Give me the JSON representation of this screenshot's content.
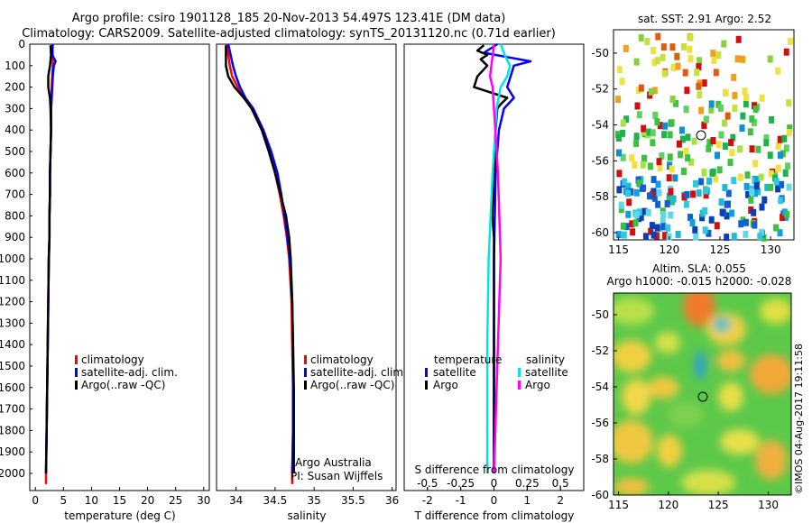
{
  "header": {
    "title_line1": "Argo profile: csiro 1901128_185 20-Nov-2013 54.497S 123.41E (DM data)",
    "title_line2": "Climatology: CARS2009. Satellite-adjusted climatology: synTS_20131120.nc (0.71d earlier)"
  },
  "depth_ticks": [
    0,
    100,
    200,
    300,
    400,
    500,
    600,
    700,
    800,
    900,
    1000,
    1100,
    1200,
    1300,
    1400,
    1500,
    1600,
    1700,
    1800,
    1900,
    2000
  ],
  "colors": {
    "climatology": "#ff0000",
    "satellite": "#0000ff",
    "argo": "#000000",
    "salinity_satellite": "#00e5e5",
    "salinity_argo": "#ff00ff"
  },
  "panel_temperature": {
    "xlabel": "temperature (deg C)",
    "xticks": [
      "0",
      "5",
      "10",
      "15",
      "20",
      "25",
      "30"
    ],
    "legend": [
      "climatology",
      "satellite-adj. clim.",
      "Argo(..raw -QC)"
    ]
  },
  "panel_salinity": {
    "xlabel": "salinity",
    "xticks": [
      "34",
      "34.5",
      "35",
      "35.5",
      "36"
    ],
    "legend": [
      "climatology",
      "satellite-adj. clim.",
      "Argo(..raw -QC)"
    ],
    "note_line1": "Argo Australia",
    "note_line2": "PI: Susan Wijffels"
  },
  "panel_difference": {
    "xlabel": "T difference from climatology",
    "xlabel_top": "S difference from climatology",
    "xticks_t": [
      "-2",
      "-1",
      "0",
      "1",
      "2"
    ],
    "xticks_s": [
      "-0.5",
      "-0.25",
      "0",
      "0.25",
      "0.5"
    ],
    "legend_temperature_title": "temperature",
    "legend_salinity_title": "salinity",
    "legend_t_items": [
      "satellite",
      "Argo"
    ],
    "legend_s_items": [
      "satellite",
      "Argo"
    ]
  },
  "map_sst": {
    "title": "sat. SST: 2.91  Argo: 2.52",
    "yticks": [
      "-50",
      "-52",
      "-54",
      "-56",
      "-58",
      "-60"
    ],
    "xticks": [
      "115",
      "120",
      "125",
      "130"
    ]
  },
  "map_sla": {
    "title_line1": "Altim. SLA: 0.055",
    "title_line2": "Argo h1000: -0.015 h2000: -0.028",
    "yticks": [
      "-50",
      "-52",
      "-54",
      "-56",
      "-58",
      "-60"
    ],
    "xticks": [
      "115",
      "120",
      "125",
      "130"
    ]
  },
  "credit": "©IMOS 04-Aug-2017 19:11:58",
  "chart_data": [
    {
      "type": "line",
      "xlabel": "temperature (deg C)",
      "ylabel": "",
      "xlim": [
        -1,
        31
      ],
      "ylim": [
        2080,
        0
      ],
      "series": [
        {
          "name": "climatology",
          "depth": [
            0,
            50,
            100,
            150,
            200,
            250,
            300,
            400,
            500,
            600,
            700,
            800,
            900,
            1000,
            1200,
            1400,
            1600,
            1800,
            2000,
            2050
          ],
          "values": [
            3.0,
            3.1,
            3.1,
            3.0,
            2.9,
            2.9,
            2.8,
            2.8,
            2.7,
            2.6,
            2.6,
            2.5,
            2.5,
            2.4,
            2.3,
            2.2,
            2.1,
            2.0,
            1.9,
            1.9
          ]
        },
        {
          "name": "satellite-adj. clim.",
          "depth": [
            0,
            50,
            80,
            100,
            150,
            200,
            250,
            300,
            400,
            500,
            600,
            700,
            800,
            900,
            1000,
            1200,
            1400,
            1600,
            1800,
            2000
          ],
          "values": [
            3.1,
            3.0,
            3.6,
            3.3,
            3.1,
            3.0,
            2.9,
            2.8,
            2.8,
            2.7,
            2.6,
            2.6,
            2.5,
            2.5,
            2.4,
            2.3,
            2.2,
            2.1,
            2.0,
            1.9
          ]
        },
        {
          "name": "Argo(..raw -QC)",
          "depth": [
            5,
            50,
            100,
            150,
            200,
            250,
            300,
            400,
            500,
            600,
            700,
            800,
            900,
            1000,
            1200,
            1400,
            1600,
            1800,
            2000
          ],
          "values": [
            2.7,
            2.8,
            2.6,
            2.3,
            2.3,
            2.6,
            2.7,
            2.8,
            2.7,
            2.6,
            2.6,
            2.5,
            2.5,
            2.4,
            2.3,
            2.2,
            2.1,
            2.0,
            1.9
          ]
        }
      ]
    },
    {
      "type": "line",
      "xlabel": "salinity",
      "ylabel": "",
      "xlim": [
        33.75,
        36.05
      ],
      "ylim": [
        2080,
        0
      ],
      "series": [
        {
          "name": "climatology",
          "depth": [
            0,
            50,
            100,
            150,
            200,
            250,
            300,
            400,
            500,
            600,
            700,
            800,
            900,
            1000,
            1200,
            1400,
            1600,
            1800,
            2000,
            2050
          ],
          "values": [
            33.88,
            33.9,
            33.92,
            33.95,
            34.02,
            34.1,
            34.2,
            34.33,
            34.42,
            34.5,
            34.56,
            34.61,
            34.65,
            34.68,
            34.71,
            34.72,
            34.73,
            34.73,
            34.72,
            34.72
          ]
        },
        {
          "name": "satellite-adj. clim.",
          "depth": [
            0,
            50,
            100,
            150,
            200,
            250,
            300,
            400,
            500,
            600,
            700,
            800,
            900,
            1000,
            1200,
            1400,
            1600,
            1800,
            2000
          ],
          "values": [
            33.9,
            33.93,
            33.96,
            34.0,
            34.05,
            34.12,
            34.22,
            34.35,
            34.45,
            34.53,
            34.58,
            34.62,
            34.66,
            34.69,
            34.72,
            34.73,
            34.73,
            34.73,
            34.72
          ]
        },
        {
          "name": "Argo(..raw -QC)",
          "depth": [
            5,
            50,
            100,
            150,
            200,
            250,
            300,
            400,
            500,
            600,
            700,
            800,
            900,
            1000,
            1200,
            1400,
            1600,
            1800,
            2000
          ],
          "values": [
            33.87,
            33.87,
            33.87,
            33.9,
            33.98,
            34.1,
            34.2,
            34.33,
            34.42,
            34.5,
            34.57,
            34.64,
            34.68,
            34.7,
            34.72,
            34.73,
            34.74,
            34.74,
            34.74
          ]
        }
      ]
    },
    {
      "type": "line",
      "xlabel": "T difference from climatology",
      "xlabel_top": "S difference from climatology",
      "xlim_t": [
        -2.7,
        2.7
      ],
      "xlim_s": [
        -0.675,
        0.675
      ],
      "ylim": [
        2080,
        0
      ],
      "series": [
        {
          "name": "satellite",
          "variable": "temperature",
          "depth": [
            0,
            40,
            60,
            80,
            100,
            150,
            200,
            250,
            300,
            400,
            600,
            1000,
            2000
          ],
          "values": [
            0.1,
            -0.3,
            0.4,
            1.1,
            0.6,
            0.5,
            0.4,
            0.6,
            0.3,
            0.15,
            0.05,
            0.0,
            0.0
          ]
        },
        {
          "name": "Argo",
          "variable": "temperature",
          "depth": [
            5,
            30,
            50,
            70,
            100,
            150,
            200,
            250,
            280,
            300,
            400,
            800,
            900,
            2000
          ],
          "values": [
            -0.3,
            -0.5,
            -0.2,
            -0.4,
            -0.2,
            -0.5,
            -0.6,
            0.4,
            0.2,
            0.1,
            0.05,
            -0.05,
            0.0,
            0.0
          ]
        },
        {
          "name": "satellite",
          "variable": "salinity",
          "depth": [
            0,
            50,
            100,
            150,
            200,
            300,
            400,
            600,
            1000,
            1400,
            1800,
            2000
          ],
          "values": [
            0.05,
            0.08,
            0.12,
            0.1,
            0.05,
            0.02,
            0.01,
            -0.01,
            -0.04,
            -0.05,
            -0.05,
            -0.05
          ]
        },
        {
          "name": "Argo",
          "variable": "salinity",
          "depth": [
            5,
            100,
            150,
            200,
            300,
            400,
            600,
            1000,
            1400,
            1800,
            2000
          ],
          "values": [
            0.0,
            -0.02,
            -0.03,
            -0.01,
            0.0,
            0.01,
            0.03,
            0.05,
            0.03,
            0.01,
            0.0
          ]
        }
      ]
    }
  ]
}
